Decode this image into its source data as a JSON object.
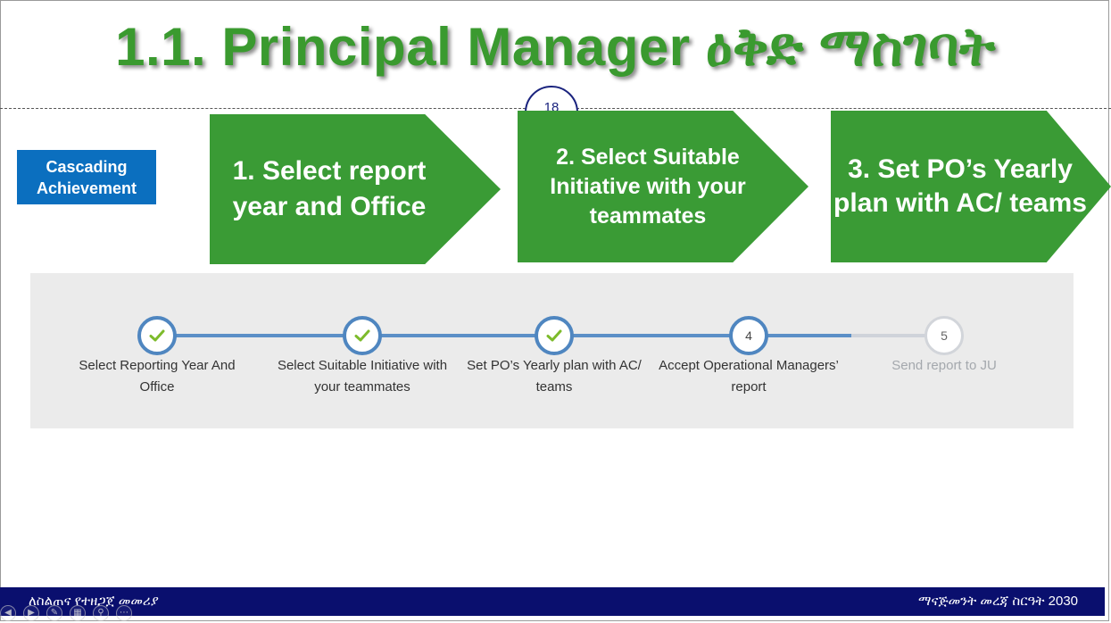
{
  "slide": {
    "title": "1.1. Principal Manager ዕቅድ ማስገባት",
    "page_number": "18",
    "badge": "Cascading Achievement",
    "arrows": [
      {
        "label": "1. Select report year and Office"
      },
      {
        "label": "2. Select Suitable Initiative with your teammates"
      },
      {
        "label": "3. Set PO’s Yearly plan with AC/ teams"
      }
    ]
  },
  "stepper": {
    "steps": [
      {
        "label": "Select Reporting Year And Office",
        "state": "completed",
        "icon": "check-icon"
      },
      {
        "label": "Select Suitable Initiative with your teammates",
        "state": "completed",
        "icon": "check-icon"
      },
      {
        "label": "Set PO’s Yearly plan with AC/ teams",
        "state": "completed",
        "icon": "check-icon"
      },
      {
        "label": "Accept Operational Managers’ report",
        "state": "current",
        "number": "4"
      },
      {
        "label": "Send report to JU",
        "state": "pending",
        "number": "5"
      }
    ]
  },
  "footer": {
    "left_text": "ለስልጠና የተዘጋጀ መመሪያ",
    "right_text": "ማናጅመንት መረጃ ስርዓት 2030"
  },
  "colors": {
    "title_green": "#3a9a2f",
    "arrow_green": "#3a9b35",
    "badge_blue": "#0b6fbf",
    "step_blue": "#4f86c0",
    "check_green": "#7dbb2b",
    "footer_navy": "#0a0f6e"
  }
}
